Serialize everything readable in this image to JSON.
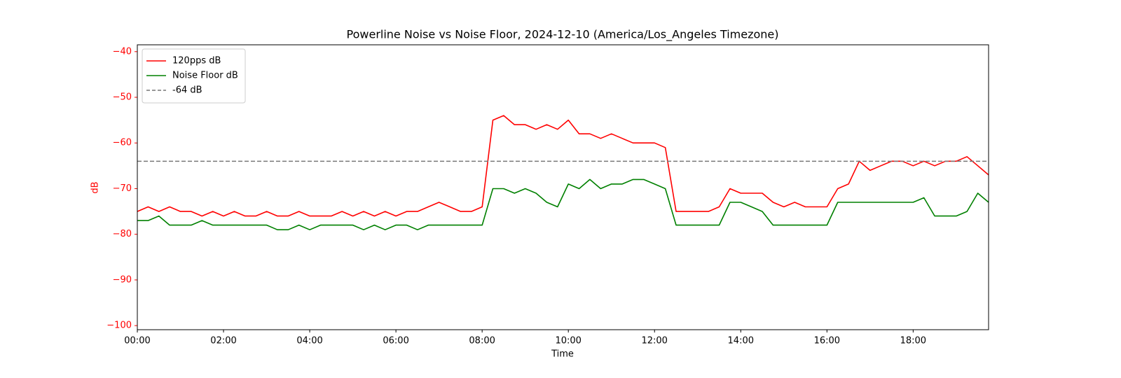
{
  "chart_data": {
    "type": "line",
    "title": "Powerline Noise vs Noise Floor, 2024-12-10 (America/Los_Angeles Timezone)",
    "xlabel": "Time",
    "ylabel": "dB",
    "ylabel_color": "#ff0000",
    "ytick_color": "#ff0000",
    "x": [
      "00:00",
      "00:15",
      "00:30",
      "00:45",
      "01:00",
      "01:15",
      "01:30",
      "01:45",
      "02:00",
      "02:15",
      "02:30",
      "02:45",
      "03:00",
      "03:15",
      "03:30",
      "03:45",
      "04:00",
      "04:15",
      "04:30",
      "04:45",
      "05:00",
      "05:15",
      "05:30",
      "05:45",
      "06:00",
      "06:15",
      "06:30",
      "06:45",
      "07:00",
      "07:15",
      "07:30",
      "07:45",
      "08:00",
      "08:15",
      "08:30",
      "08:45",
      "09:00",
      "09:15",
      "09:30",
      "09:45",
      "10:00",
      "10:15",
      "10:30",
      "10:45",
      "11:00",
      "11:15",
      "11:30",
      "11:45",
      "12:00",
      "12:15",
      "12:30",
      "12:45",
      "13:00",
      "13:15",
      "13:30",
      "13:45",
      "14:00",
      "14:15",
      "14:30",
      "14:45",
      "15:00",
      "15:15",
      "15:30",
      "15:45",
      "16:00",
      "16:15",
      "16:30",
      "16:45",
      "17:00",
      "17:15",
      "17:30",
      "17:45",
      "18:00",
      "18:15",
      "18:30",
      "18:45",
      "19:00",
      "19:15",
      "19:30",
      "19:45"
    ],
    "series": [
      {
        "name": "120pps dB",
        "color": "#ff0000",
        "values": [
          -75,
          -74,
          -75,
          -74,
          -75,
          -75,
          -76,
          -75,
          -76,
          -75,
          -76,
          -76,
          -75,
          -76,
          -76,
          -75,
          -76,
          -76,
          -76,
          -75,
          -76,
          -75,
          -76,
          -75,
          -76,
          -75,
          -75,
          -74,
          -73,
          -74,
          -75,
          -75,
          -74,
          -55,
          -54,
          -56,
          -56,
          -57,
          -56,
          -57,
          -55,
          -58,
          -58,
          -59,
          -58,
          -59,
          -60,
          -60,
          -60,
          -61,
          -75,
          -75,
          -75,
          -75,
          -74,
          -70,
          -71,
          -71,
          -71,
          -73,
          -74,
          -73,
          -74,
          -74,
          -74,
          -70,
          -69,
          -64,
          -66,
          -65,
          -64,
          -64,
          -65,
          -64,
          -65,
          -64,
          -64,
          -63,
          -65,
          -67
        ]
      },
      {
        "name": "Noise Floor dB",
        "color": "#008000",
        "values": [
          -77,
          -77,
          -76,
          -78,
          -78,
          -78,
          -77,
          -78,
          -78,
          -78,
          -78,
          -78,
          -78,
          -79,
          -79,
          -78,
          -79,
          -78,
          -78,
          -78,
          -78,
          -79,
          -78,
          -79,
          -78,
          -78,
          -79,
          -78,
          -78,
          -78,
          -78,
          -78,
          -78,
          -70,
          -70,
          -71,
          -70,
          -71,
          -73,
          -74,
          -69,
          -70,
          -68,
          -70,
          -69,
          -69,
          -68,
          -68,
          -69,
          -70,
          -78,
          -78,
          -78,
          -78,
          -78,
          -73,
          -73,
          -74,
          -75,
          -78,
          -78,
          -78,
          -78,
          -78,
          -78,
          -73,
          -73,
          -73,
          -73,
          -73,
          -73,
          -73,
          -73,
          -72,
          -76,
          -76,
          -76,
          -75,
          -71,
          -73
        ]
      }
    ],
    "hlines": [
      {
        "name": "-64 dB",
        "value": -64,
        "color": "#777777"
      }
    ],
    "xlim": [
      "00:00",
      "19:45"
    ],
    "xticks": [
      "00:00",
      "02:00",
      "04:00",
      "06:00",
      "08:00",
      "10:00",
      "12:00",
      "14:00",
      "16:00",
      "18:00"
    ],
    "ylim": [
      -100.9,
      -38.5
    ],
    "yticks": [
      {
        "value": -100,
        "label": "−100"
      },
      {
        "value": -90,
        "label": "−90"
      },
      {
        "value": -80,
        "label": "−80"
      },
      {
        "value": -70,
        "label": "−70"
      },
      {
        "value": -60,
        "label": "−60"
      },
      {
        "value": -50,
        "label": "−50"
      },
      {
        "value": -40,
        "label": "−40"
      }
    ],
    "legend": "upper left"
  }
}
